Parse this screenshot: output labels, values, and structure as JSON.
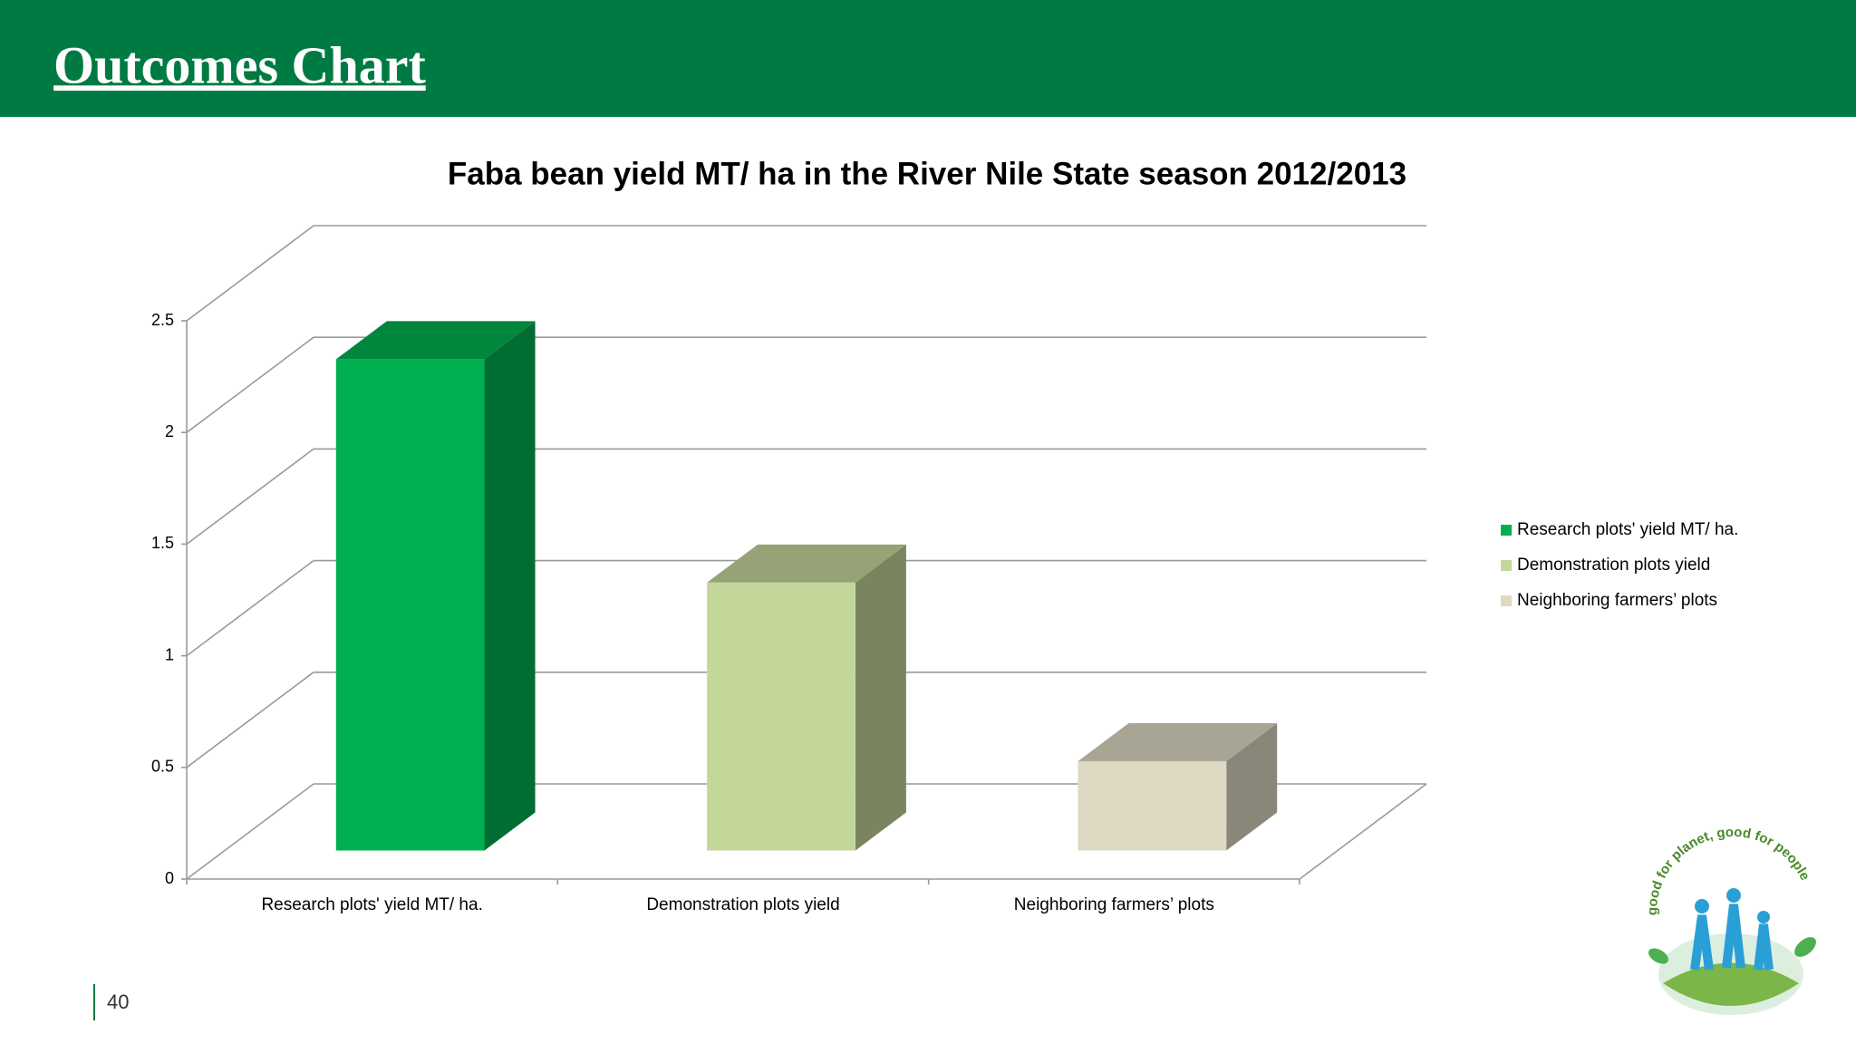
{
  "header": {
    "title": "Outcomes  Chart"
  },
  "page_number": 40,
  "logo": {
    "text": "good for planet, good for people"
  },
  "chart_data": {
    "type": "bar3d",
    "title": "Faba bean yield MT/ ha in the River Nile State season 2012/2013",
    "categories": [
      "Research plots' yield MT/ ha.",
      "Demonstration plots yield",
      "Neighboring farmers’ plots"
    ],
    "values": [
      2.2,
      1.2,
      0.4
    ],
    "colors": [
      "#00b050",
      "#c4d79b",
      "#ddd9c3"
    ],
    "ylim": [
      0,
      2.5
    ],
    "yticks": [
      0,
      0.5,
      1,
      1.5,
      2,
      2.5
    ],
    "grid": true,
    "legend": "right"
  }
}
